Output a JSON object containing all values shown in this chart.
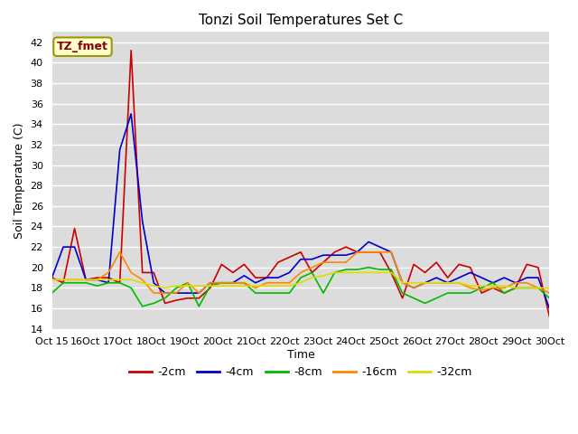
{
  "title": "Tonzi Soil Temperatures Set C",
  "ylabel": "Soil Temperature (C)",
  "xlabel": "Time",
  "annotation": "TZ_fmet",
  "ylim": [
    14,
    43
  ],
  "yticks": [
    14,
    16,
    18,
    20,
    22,
    24,
    26,
    28,
    30,
    32,
    34,
    36,
    38,
    40,
    42
  ],
  "x_labels": [
    "Oct 15",
    "Oct 16",
    "Oct 17",
    "Oct 18",
    "Oct 19",
    "Oct 20",
    "Oct 21",
    "Oct 22",
    "Oct 23",
    "Oct 24",
    "Oct 25",
    "Oct 26",
    "Oct 27",
    "Oct 28",
    "Oct 29",
    "Oct 30"
  ],
  "background_color": "#dcdcdc",
  "series": {
    "-2cm": {
      "color": "#cc0000",
      "data": [
        19.0,
        18.5,
        23.8,
        18.8,
        19.0,
        19.0,
        18.5,
        41.2,
        19.5,
        19.5,
        16.5,
        16.8,
        17.0,
        17.0,
        18.0,
        20.3,
        19.5,
        20.3,
        19.0,
        19.0,
        20.5,
        21.0,
        21.5,
        19.5,
        20.5,
        21.5,
        22.0,
        21.5,
        21.5,
        21.5,
        19.5,
        17.0,
        20.3,
        19.5,
        20.5,
        19.0,
        20.3,
        20.0,
        17.5,
        18.0,
        17.5,
        18.0,
        20.3,
        20.0,
        15.2
      ]
    },
    "-4cm": {
      "color": "#0000cc",
      "data": [
        19.0,
        22.0,
        22.0,
        18.8,
        18.8,
        18.5,
        31.5,
        35.0,
        24.5,
        18.5,
        17.5,
        17.5,
        17.5,
        17.5,
        18.5,
        18.5,
        18.5,
        19.2,
        18.5,
        19.0,
        19.0,
        19.5,
        20.8,
        20.8,
        21.2,
        21.2,
        21.2,
        21.5,
        22.5,
        22.0,
        21.5,
        18.5,
        18.0,
        18.5,
        19.0,
        18.5,
        19.0,
        19.5,
        19.0,
        18.5,
        19.0,
        18.5,
        19.0,
        19.0,
        16.0
      ]
    },
    "-8cm": {
      "color": "#00bb00",
      "data": [
        17.5,
        18.5,
        18.5,
        18.5,
        18.2,
        18.5,
        18.5,
        18.0,
        16.2,
        16.5,
        17.0,
        18.0,
        18.5,
        16.2,
        18.2,
        18.5,
        18.5,
        18.5,
        17.5,
        17.5,
        17.5,
        17.5,
        19.0,
        19.5,
        17.5,
        19.5,
        19.8,
        19.8,
        20.0,
        19.8,
        19.8,
        17.5,
        17.0,
        16.5,
        17.0,
        17.5,
        17.5,
        17.5,
        18.0,
        18.5,
        17.5,
        18.0,
        18.0,
        18.0,
        17.0
      ]
    },
    "-16cm": {
      "color": "#ff8800",
      "data": [
        18.8,
        18.8,
        18.8,
        18.8,
        18.8,
        19.5,
        21.5,
        19.5,
        18.8,
        17.5,
        17.5,
        17.5,
        18.5,
        17.5,
        18.5,
        18.5,
        18.5,
        18.5,
        18.0,
        18.5,
        18.5,
        18.5,
        19.5,
        20.0,
        20.5,
        20.5,
        20.5,
        21.5,
        21.5,
        21.5,
        21.5,
        18.5,
        18.0,
        18.5,
        18.5,
        18.5,
        18.5,
        18.0,
        17.8,
        18.0,
        18.0,
        18.5,
        18.5,
        18.0,
        17.5
      ]
    },
    "-32cm": {
      "color": "#dddd00",
      "data": [
        18.8,
        18.8,
        18.8,
        18.8,
        18.8,
        18.8,
        18.8,
        18.8,
        18.5,
        18.2,
        18.0,
        18.2,
        18.2,
        18.2,
        18.2,
        18.2,
        18.2,
        18.2,
        18.2,
        18.2,
        18.2,
        18.2,
        18.5,
        19.0,
        19.2,
        19.5,
        19.5,
        19.5,
        19.5,
        19.5,
        19.5,
        18.5,
        18.5,
        18.5,
        18.5,
        18.5,
        18.5,
        18.2,
        18.2,
        18.2,
        18.2,
        18.0,
        18.0,
        18.0,
        18.0
      ]
    }
  },
  "legend_order": [
    "-2cm",
    "-4cm",
    "-8cm",
    "-16cm",
    "-32cm"
  ]
}
